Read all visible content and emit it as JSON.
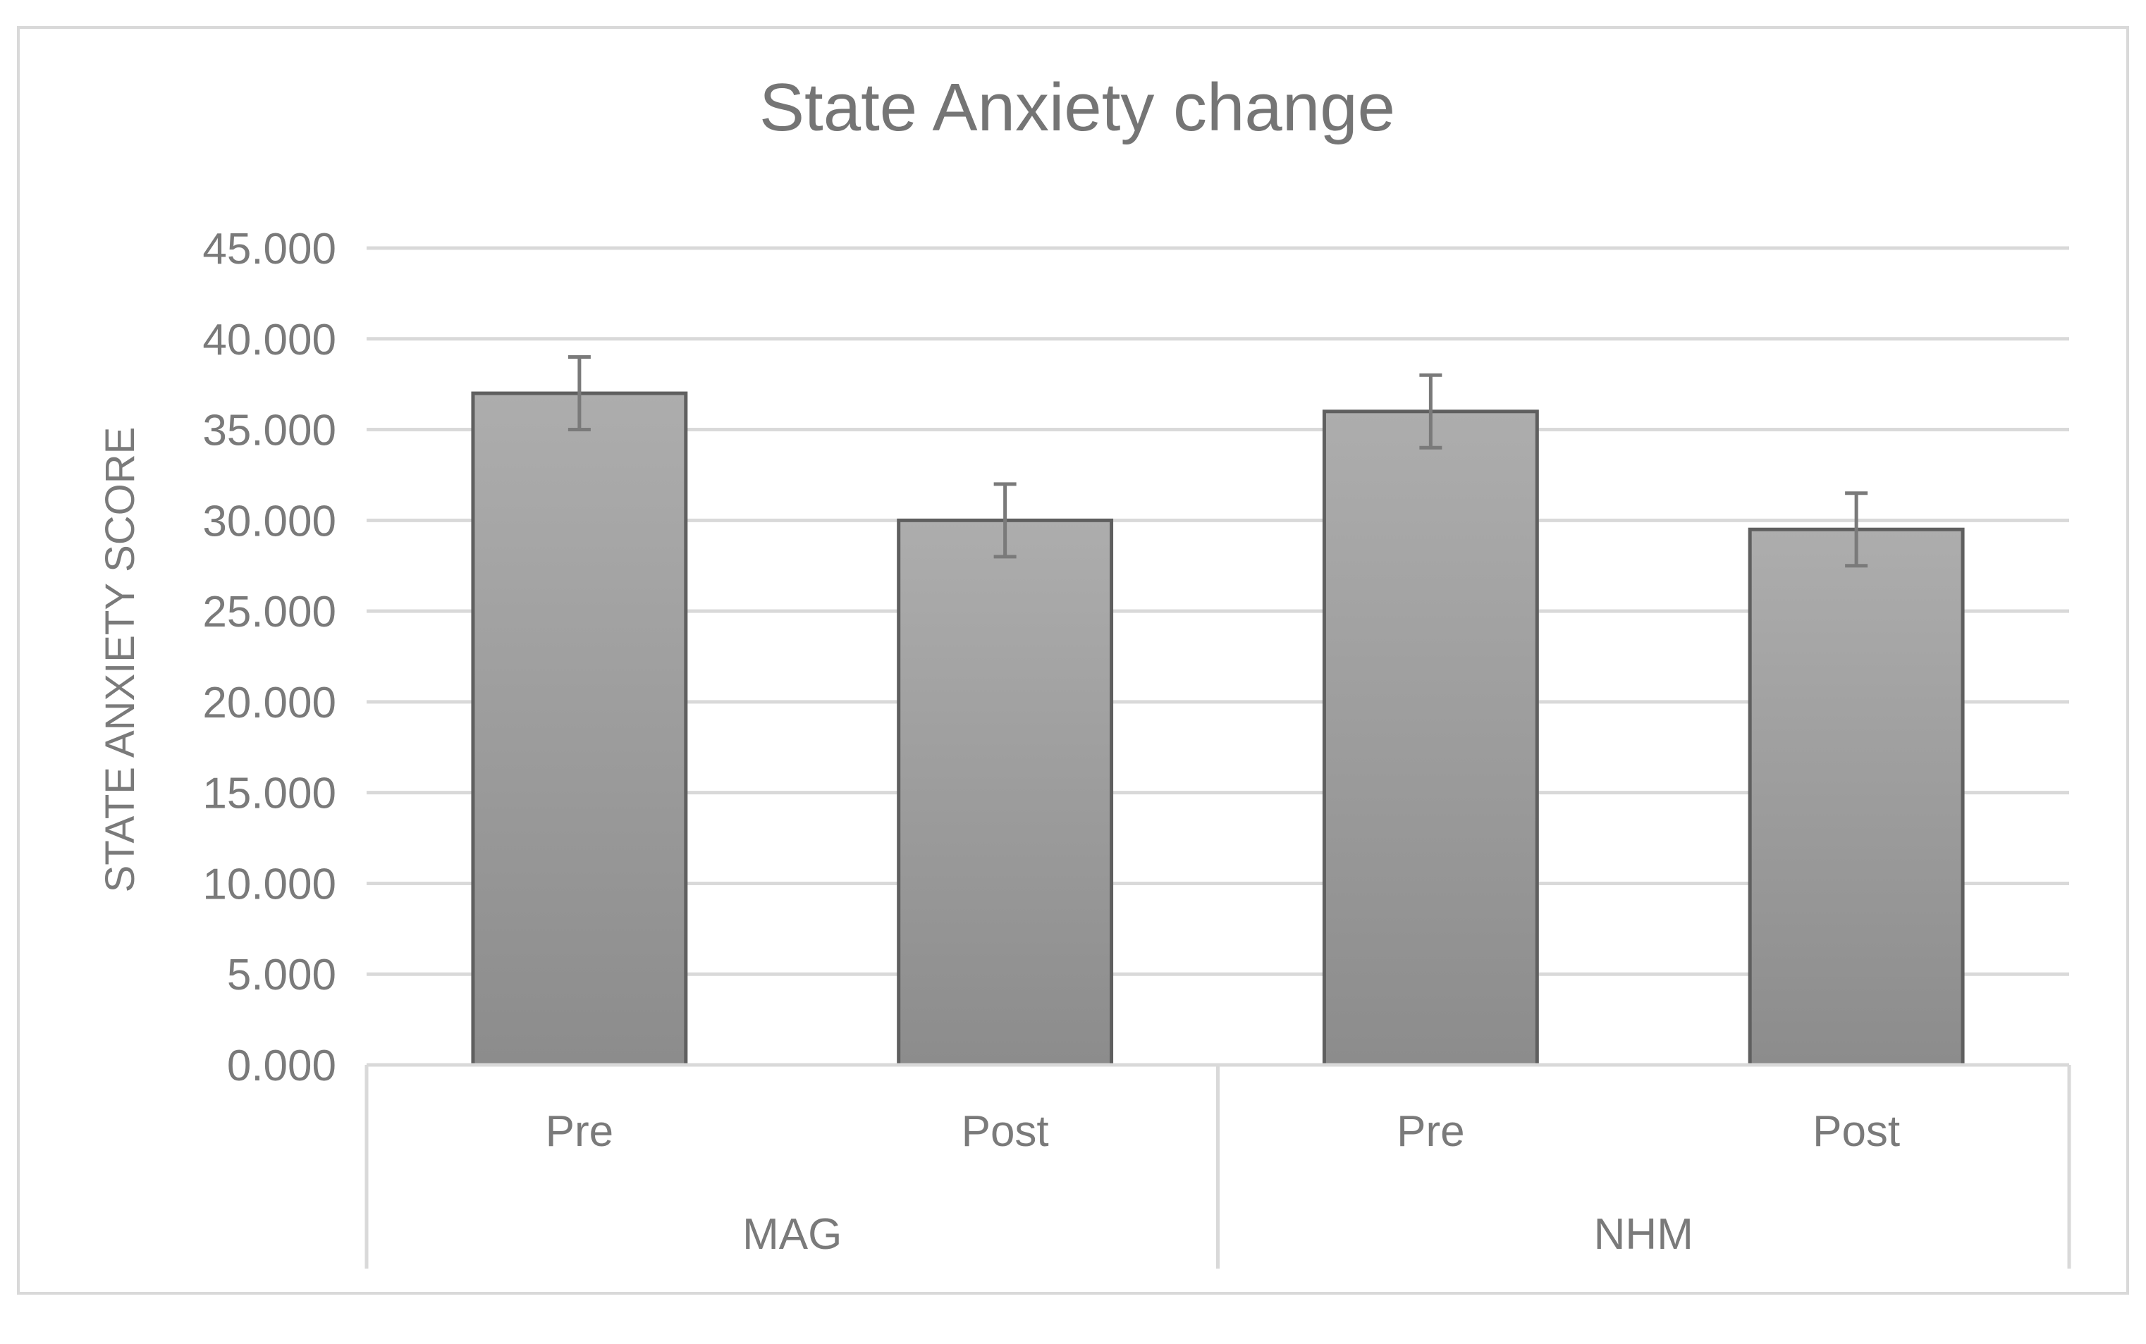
{
  "chart_data": {
    "type": "bar",
    "title": "State Anxiety change",
    "ylabel": "STATE ANXIETY SCORE",
    "xlabel": "",
    "ylim": [
      0,
      45
    ],
    "yticks": [
      "0.000",
      "5.000",
      "10.000",
      "15.000",
      "20.000",
      "25.000",
      "30.000",
      "35.000",
      "40.000",
      "45.000"
    ],
    "groups": [
      {
        "name": "MAG",
        "categories": [
          "Pre",
          "Post"
        ]
      },
      {
        "name": "NHM",
        "categories": [
          "Pre",
          "Post"
        ]
      }
    ],
    "categories": [
      "Pre",
      "Post",
      "Pre",
      "Post"
    ],
    "values": [
      37.0,
      30.0,
      36.0,
      29.5
    ],
    "error_low": [
      35.0,
      28.0,
      34.0,
      27.5
    ],
    "error_high": [
      39.0,
      32.0,
      38.0,
      31.5
    ],
    "grid": true,
    "legend": "none",
    "colors": {
      "bar_top": "#adadad",
      "bar_bottom": "#8c8c8c",
      "bar_edge": "#5f5f5f",
      "grid": "#d9d9d9",
      "text": "#7a7a7a",
      "error_bar": "#7a7a7a"
    }
  }
}
